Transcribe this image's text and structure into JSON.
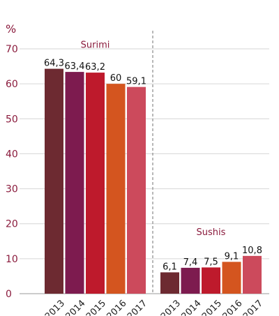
{
  "chart_data": {
    "type": "bar",
    "ylabel": "%",
    "ylim": [
      0,
      70
    ],
    "yticks": [
      0,
      10,
      20,
      30,
      40,
      50,
      60,
      70
    ],
    "grid": true,
    "categories": [
      "2013",
      "2014",
      "2015",
      "2016",
      "2017"
    ],
    "groups": [
      {
        "name": "Surimi",
        "values": [
          64.3,
          63.4,
          63.2,
          60,
          59.1
        ],
        "labels": [
          "64,3",
          "63,4",
          "63,2",
          "60",
          "59,1"
        ]
      },
      {
        "name": "Sushis",
        "values": [
          6.1,
          7.4,
          7.5,
          9.1,
          10.8
        ],
        "labels": [
          "6,1",
          "7,4",
          "7,5",
          "9,1",
          "10,8"
        ]
      }
    ],
    "colors": [
      "#6d2a31",
      "#7d1b4f",
      "#be1a2c",
      "#d4551f",
      "#cc4a5c"
    ],
    "label_color": "#8a1a3c",
    "separator": "dashed-vertical"
  }
}
